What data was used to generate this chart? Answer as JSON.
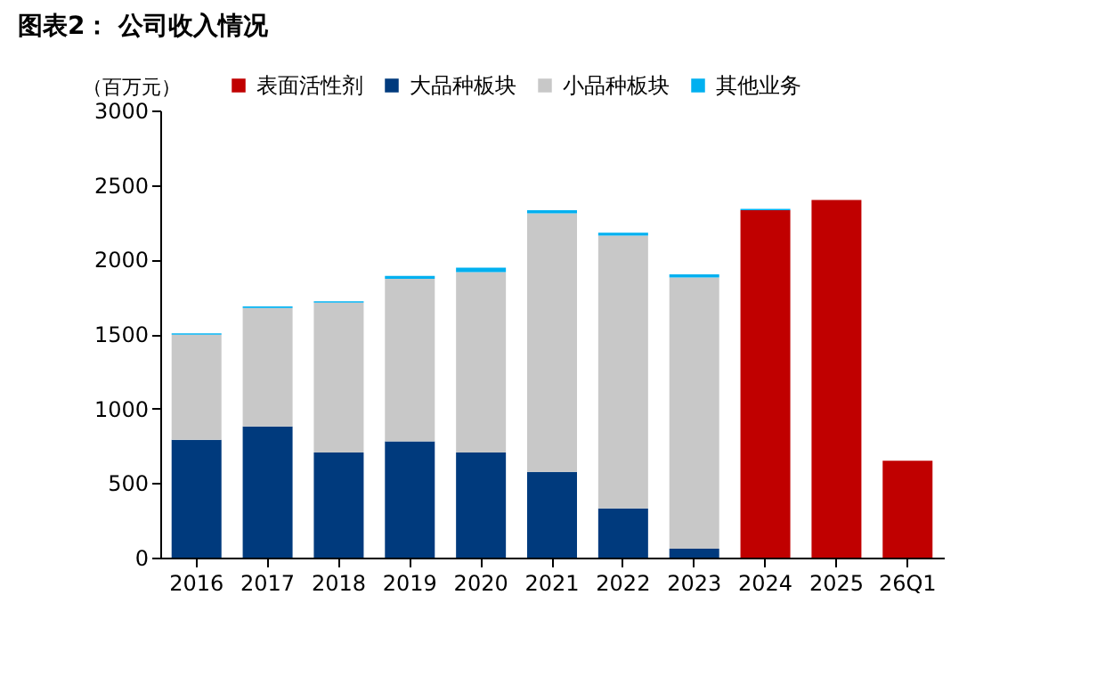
{
  "chart_data": {
    "type": "bar",
    "title": "图表2：  公司收入情况",
    "ylabel": "（百万元）",
    "stacked": true,
    "legend": "top",
    "grid": false,
    "categories": [
      "2016",
      "2017",
      "2018",
      "2019",
      "2020",
      "2021",
      "2022",
      "2023",
      "2024",
      "2025",
      "26Q1"
    ],
    "ylim": [
      0,
      3000
    ],
    "yticks": [
      0,
      500,
      1000,
      1500,
      2000,
      2500,
      3000
    ],
    "series": [
      {
        "name": "表面活性剂",
        "color": "#c00000",
        "values": [
          null,
          null,
          null,
          null,
          null,
          null,
          null,
          null,
          2330,
          2400,
          650
        ]
      },
      {
        "name": "大品种板块",
        "color": "#003a7d",
        "values": [
          790,
          880,
          705,
          780,
          705,
          575,
          330,
          60,
          null,
          null,
          null
        ]
      },
      {
        "name": "小品种板块",
        "color": "#c8c8c8",
        "values": [
          705,
          795,
          1005,
          1090,
          1210,
          1735,
          1830,
          1820,
          null,
          null,
          null
        ]
      },
      {
        "name": "其他业务",
        "color": "#00b0f0",
        "values": [
          10,
          10,
          10,
          20,
          30,
          20,
          20,
          20,
          10,
          null,
          null
        ]
      }
    ]
  }
}
